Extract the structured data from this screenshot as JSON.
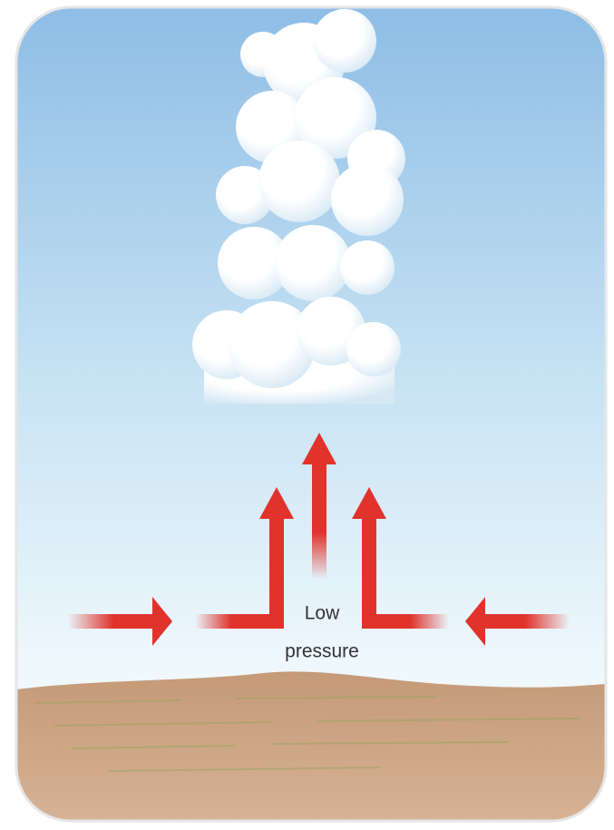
{
  "label": {
    "lines": [
      "Low",
      "pressure"
    ]
  }
}
